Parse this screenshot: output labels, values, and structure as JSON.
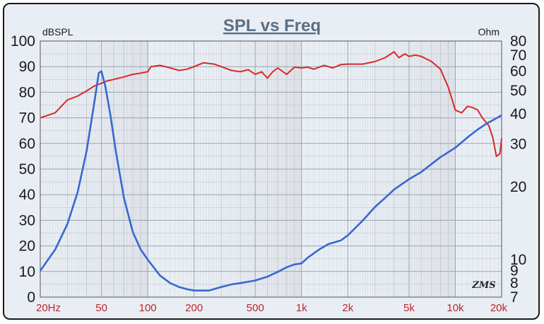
{
  "chart_data": {
    "type": "line",
    "title": "SPL vs Freq",
    "left_axis_unit": "dBSPL",
    "right_axis_unit": "Ohm",
    "x_scale": "log",
    "xlim": [
      20,
      20000
    ],
    "ylim_left": [
      0,
      100
    ],
    "ylim_right_log": [
      7,
      80
    ],
    "x_tick_labels": [
      {
        "value": 20,
        "label": "20Hz"
      },
      {
        "value": 50,
        "label": "50"
      },
      {
        "value": 100,
        "label": "100"
      },
      {
        "value": 200,
        "label": "200"
      },
      {
        "value": 500,
        "label": "500"
      },
      {
        "value": 1000,
        "label": "1k"
      },
      {
        "value": 2000,
        "label": "2k"
      },
      {
        "value": 5000,
        "label": "5k"
      },
      {
        "value": 10000,
        "label": "10k"
      },
      {
        "value": 20000,
        "label": "20k"
      }
    ],
    "left_tick_labels": [
      "0",
      "10",
      "20",
      "30",
      "40",
      "50",
      "60",
      "70",
      "80",
      "90",
      "100"
    ],
    "right_tick_labels": [
      {
        "value": 7,
        "label": "7"
      },
      {
        "value": 8,
        "label": "8"
      },
      {
        "value": 9,
        "label": "9"
      },
      {
        "value": 10,
        "label": "10"
      },
      {
        "value": 20,
        "label": "20"
      },
      {
        "value": 30,
        "label": "30"
      },
      {
        "value": 40,
        "label": "40"
      },
      {
        "value": 50,
        "label": "50"
      },
      {
        "value": 60,
        "label": "60"
      },
      {
        "value": 70,
        "label": "70"
      },
      {
        "value": 80,
        "label": "80"
      }
    ],
    "grid": true,
    "series": [
      {
        "color": "#d62a2a",
        "axis": "left",
        "points": [
          [
            20,
            70
          ],
          [
            25,
            72
          ],
          [
            30,
            77
          ],
          [
            35,
            78.5
          ],
          [
            40,
            80.5
          ],
          [
            45,
            82.5
          ],
          [
            50,
            83.5
          ],
          [
            55,
            84.5
          ],
          [
            60,
            85
          ],
          [
            70,
            86
          ],
          [
            80,
            87
          ],
          [
            90,
            87.5
          ],
          [
            100,
            88
          ],
          [
            105,
            90
          ],
          [
            120,
            90.5
          ],
          [
            140,
            89.5
          ],
          [
            160,
            88.5
          ],
          [
            180,
            89
          ],
          [
            200,
            90
          ],
          [
            230,
            91.5
          ],
          [
            270,
            91
          ],
          [
            300,
            90
          ],
          [
            350,
            88.5
          ],
          [
            400,
            88
          ],
          [
            450,
            88.8
          ],
          [
            500,
            87
          ],
          [
            550,
            88
          ],
          [
            600,
            85.5
          ],
          [
            650,
            88
          ],
          [
            700,
            89.5
          ],
          [
            800,
            87
          ],
          [
            900,
            89.8
          ],
          [
            1000,
            89.5
          ],
          [
            1100,
            89.8
          ],
          [
            1200,
            89
          ],
          [
            1400,
            90.5
          ],
          [
            1600,
            89.5
          ],
          [
            1800,
            90.8
          ],
          [
            2000,
            91
          ],
          [
            2500,
            91
          ],
          [
            3000,
            92
          ],
          [
            3500,
            93.5
          ],
          [
            4000,
            95.8
          ],
          [
            4300,
            93.5
          ],
          [
            4700,
            95
          ],
          [
            5000,
            94
          ],
          [
            5500,
            94.5
          ],
          [
            6000,
            94
          ],
          [
            7000,
            92
          ],
          [
            8000,
            89
          ],
          [
            9000,
            82
          ],
          [
            10000,
            73
          ],
          [
            11000,
            72
          ],
          [
            12000,
            74.5
          ],
          [
            13000,
            74
          ],
          [
            14000,
            73
          ],
          [
            15000,
            70
          ],
          [
            16500,
            67
          ],
          [
            17500,
            62.5
          ],
          [
            18500,
            55
          ],
          [
            19500,
            56
          ],
          [
            20000,
            62
          ]
        ]
      },
      {
        "color": "#3768cf",
        "axis": "right",
        "points": [
          [
            20,
            9
          ],
          [
            25,
            11
          ],
          [
            30,
            14
          ],
          [
            35,
            19
          ],
          [
            40,
            28
          ],
          [
            45,
            45
          ],
          [
            48,
            59
          ],
          [
            50,
            60
          ],
          [
            53,
            52
          ],
          [
            57,
            40
          ],
          [
            62,
            28
          ],
          [
            70,
            18
          ],
          [
            80,
            13
          ],
          [
            90,
            11
          ],
          [
            100,
            10
          ],
          [
            120,
            8.6
          ],
          [
            140,
            8
          ],
          [
            160,
            7.7
          ],
          [
            180,
            7.55
          ],
          [
            200,
            7.45
          ],
          [
            250,
            7.45
          ],
          [
            300,
            7.7
          ],
          [
            350,
            7.9
          ],
          [
            400,
            8
          ],
          [
            500,
            8.2
          ],
          [
            600,
            8.5
          ],
          [
            700,
            8.9
          ],
          [
            800,
            9.3
          ],
          [
            900,
            9.55
          ],
          [
            1000,
            9.65
          ],
          [
            1100,
            10.2
          ],
          [
            1300,
            11
          ],
          [
            1500,
            11.6
          ],
          [
            1800,
            12
          ],
          [
            2000,
            12.6
          ],
          [
            2500,
            14.5
          ],
          [
            3000,
            16.5
          ],
          [
            3500,
            18
          ],
          [
            4000,
            19.5
          ],
          [
            5000,
            21.5
          ],
          [
            6000,
            23
          ],
          [
            8000,
            26.5
          ],
          [
            10000,
            29
          ],
          [
            12000,
            32
          ],
          [
            14000,
            34.5
          ],
          [
            16000,
            36.5
          ],
          [
            18000,
            38
          ],
          [
            20000,
            39.5
          ]
        ]
      }
    ]
  },
  "brand_mark": "ZMS"
}
